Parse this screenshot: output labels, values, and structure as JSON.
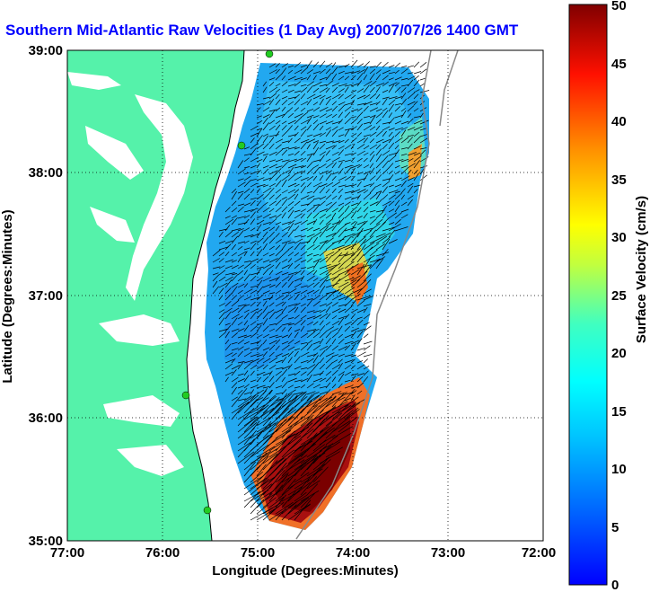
{
  "title": "Southern Mid-Atlantic Raw Velocities (1 Day Avg) 2007/07/26 1400 GMT",
  "xaxis": {
    "label": "Longitude (Degrees:Minutes)",
    "ticks": [
      "77:00",
      "76:00",
      "75:00",
      "74:00",
      "73:00",
      "72:00"
    ]
  },
  "yaxis": {
    "label": "Latitude (Degrees:Minutes)",
    "ticks": [
      "39:00",
      "38:00",
      "37:00",
      "36:00",
      "35:00"
    ]
  },
  "colorbar": {
    "label": "Surface Velocity (cm/s)",
    "ticks": [
      "50",
      "45",
      "40",
      "35",
      "30",
      "25",
      "20",
      "15",
      "10",
      "5",
      "0"
    ],
    "min": 0,
    "max": 50
  },
  "colors": {
    "land": "#55f2aa",
    "title": "#0000ff",
    "station": "#22cc22"
  }
}
